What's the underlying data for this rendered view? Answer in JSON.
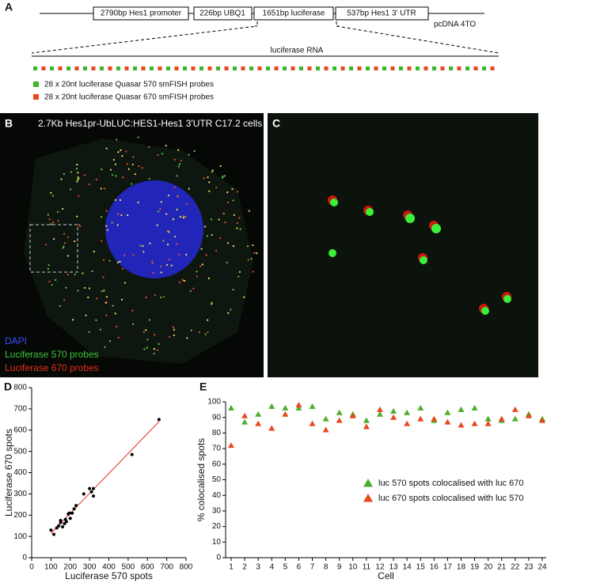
{
  "panel_a": {
    "label": "A",
    "boxes": [
      "2790bp Hes1 promoter",
      "226bp UBQ1",
      "1651bp luciferase",
      "537bp Hes1 3' UTR"
    ],
    "vector": "pcDNA 4TO",
    "rna": "luciferase RNA",
    "legend": [
      {
        "text": "28 x 20nt luciferase Quasar 570 smFISH probes",
        "color": "#3fb52b"
      },
      {
        "text": "28 x 20nt luciferase Quasar 670 smFISH probes",
        "color": "#e8481c"
      }
    ]
  },
  "panel_b": {
    "label": "B",
    "title": "2.7Kb Hes1pr-UbLUC:HES1-Hes1 3'UTR  C17.2 cells",
    "channels": [
      {
        "text": "DAPI",
        "color": "#3a4cff"
      },
      {
        "text": "Luciferase 570 probes",
        "color": "#3fc23a"
      },
      {
        "text": "Luciferase 670 probes",
        "color": "#e8301c"
      }
    ]
  },
  "panel_c": {
    "label": "C"
  },
  "chart_data": [
    {
      "type": "scatter",
      "label": "D",
      "xlabel": "Luciferase 570 spots",
      "ylabel": "Luciferase 670 spots",
      "x": [
        100,
        115,
        130,
        140,
        150,
        150,
        160,
        170,
        175,
        180,
        190,
        195,
        200,
        210,
        220,
        230,
        270,
        300,
        310,
        320,
        320,
        520,
        660
      ],
      "values": [
        130,
        110,
        140,
        150,
        165,
        175,
        145,
        160,
        180,
        170,
        205,
        210,
        185,
        210,
        230,
        245,
        300,
        325,
        310,
        290,
        325,
        485,
        650
      ],
      "color": "#000000",
      "fit_line": {
        "x": [
          100,
          660
        ],
        "y": [
          115,
          640
        ],
        "color": "#e8301c"
      },
      "xlim": [
        0,
        800
      ],
      "xticks": [
        0,
        100,
        200,
        300,
        400,
        500,
        600,
        700,
        800
      ],
      "ylim": [
        0,
        800
      ],
      "yticks": [
        0,
        100,
        200,
        300,
        400,
        500,
        600,
        700,
        800
      ]
    },
    {
      "type": "scatter",
      "label": "E",
      "xlabel": "Cell",
      "ylabel": "% colocalised spots",
      "categories": [
        "1",
        "2",
        "3",
        "4",
        "5",
        "6",
        "7",
        "8",
        "9",
        "10",
        "11",
        "12",
        "13",
        "14",
        "15",
        "16",
        "17",
        "18",
        "19",
        "20",
        "21",
        "22",
        "23",
        "24"
      ],
      "series": [
        {
          "name": "luc 570 spots colocalised with luc 670",
          "color": "#4cae2c",
          "values": [
            96,
            87,
            92,
            97,
            96,
            96,
            97,
            89,
            93,
            92,
            88,
            92,
            94,
            93,
            96,
            88,
            93,
            95,
            96,
            89,
            88,
            89,
            92,
            89
          ]
        },
        {
          "name": "luc 670 spots colocalised with luc 570",
          "color": "#e8481c",
          "values": [
            72,
            91,
            86,
            83,
            92,
            98,
            86,
            82,
            88,
            91,
            84,
            95,
            90,
            86,
            89,
            89,
            87,
            85,
            86,
            86,
            89,
            95,
            91,
            88
          ]
        }
      ],
      "ylim": [
        0,
        100
      ],
      "yticks": [
        0,
        10,
        20,
        30,
        40,
        50,
        60,
        70,
        80,
        90,
        100
      ]
    }
  ]
}
